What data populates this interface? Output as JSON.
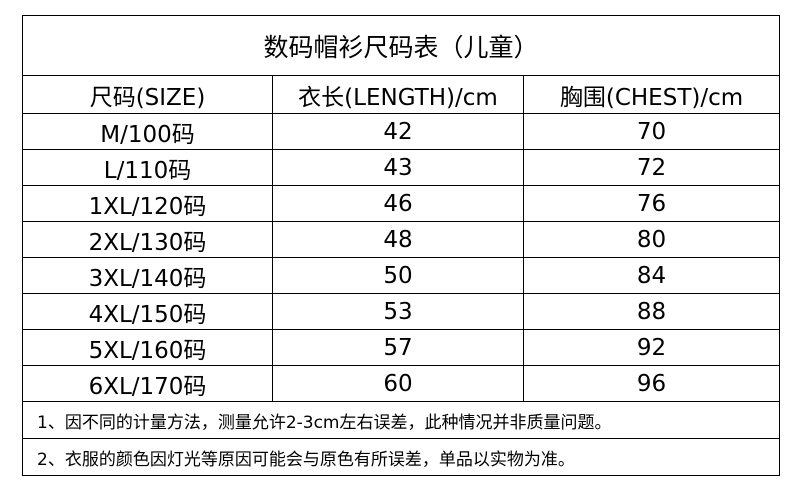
{
  "table": {
    "title": "数码帽衫尺码表（儿童）",
    "header": [
      "尺码(SIZE)",
      "衣长(LENGTH)/cm",
      "胸围(CHEST)/cm"
    ],
    "rows": [
      [
        "M/100码",
        42,
        70
      ],
      [
        "L/110码",
        43,
        72
      ],
      [
        "1XL/120码",
        46,
        76
      ],
      [
        "2XL/130码",
        48,
        80
      ],
      [
        "3XL/140码",
        50,
        84
      ],
      [
        "4XL/150码",
        53,
        88
      ],
      [
        "5XL/160码",
        57,
        92
      ],
      [
        "6XL/170码",
        60,
        96
      ]
    ],
    "notes": [
      "1、因不同的计量方法，测量允许2-3cm左右误差，此种情况并非质量问题。",
      "2、衣服的颜色因灯光等原因可能会与原色有所误差，单品以实物为准。"
    ]
  }
}
